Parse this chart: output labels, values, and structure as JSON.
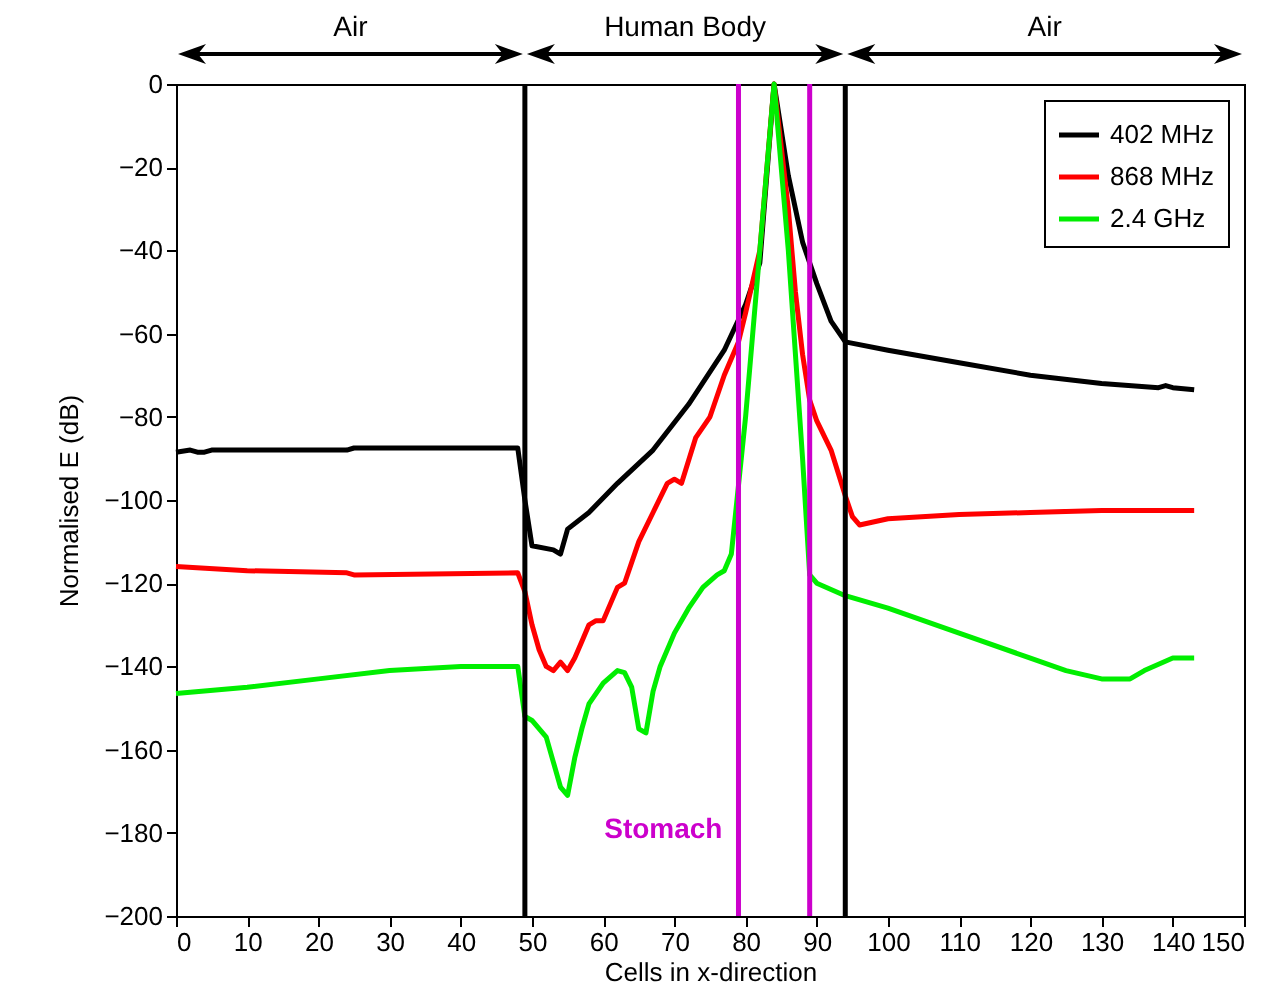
{
  "chart_data": {
    "type": "line",
    "xlabel": "Cells in x-direction",
    "ylabel": "Normalised E (dB)",
    "xlim": [
      0,
      150
    ],
    "xticks": [
      0,
      10,
      20,
      30,
      40,
      50,
      60,
      70,
      80,
      90,
      100,
      110,
      120,
      130,
      140,
      150
    ],
    "ylim": [
      -200,
      0
    ],
    "yticks": [
      -200,
      -180,
      -160,
      -140,
      -120,
      -100,
      -80,
      -60,
      -40,
      -20,
      0
    ],
    "grid": false,
    "legend": "top right",
    "marker": "none",
    "line_style": "solid",
    "annotations": [
      "Air",
      "Human Body",
      "Air",
      "Stomach"
    ],
    "ref_lines": [
      {
        "axis": "x",
        "value": 49,
        "color": "#000000"
      },
      {
        "axis": "x",
        "value": 94,
        "color": "#000000"
      },
      {
        "axis": "x",
        "value": 79,
        "color": "#cc00cc"
      },
      {
        "axis": "x",
        "value": 89,
        "color": "#cc00cc"
      }
    ],
    "series": [
      {
        "name": "402 MHz",
        "color": "#000000",
        "x": [
          0,
          2,
          3,
          4,
          5,
          24,
          25,
          40,
          48,
          49,
          50,
          53,
          54,
          55,
          58,
          62,
          67,
          72,
          77,
          80,
          82,
          84,
          86,
          88,
          90,
          92,
          94,
          100,
          110,
          120,
          130,
          138,
          139,
          140,
          143
        ],
        "values": [
          -88.5,
          -88,
          -88.5,
          -88.5,
          -88,
          -88,
          -87.5,
          -87.5,
          -87.5,
          -100,
          -111,
          -112,
          -113,
          -107,
          -103,
          -96,
          -88,
          -77,
          -64,
          -53,
          -43,
          0,
          -22,
          -38,
          -48,
          -57,
          -62,
          -64,
          -67,
          -70,
          -72,
          -73,
          -72.5,
          -73,
          -73.5
        ]
      },
      {
        "name": "868 MHz",
        "color": "#ff0000",
        "x": [
          0,
          10,
          24,
          25,
          48,
          49,
          50,
          51,
          52,
          53,
          54,
          55,
          56,
          57,
          58,
          59,
          60,
          62,
          63,
          65,
          67,
          69,
          70,
          71,
          73,
          75,
          77,
          79,
          80,
          82,
          84,
          86,
          87,
          88,
          89,
          90,
          92,
          94,
          95,
          96,
          100,
          110,
          120,
          130,
          140,
          143
        ],
        "values": [
          -116,
          -117,
          -117.5,
          -118,
          -117.5,
          -122,
          -130,
          -136,
          -140,
          -141,
          -139,
          -141,
          -138,
          -134,
          -130,
          -129,
          -129,
          -121,
          -120,
          -110,
          -103,
          -96,
          -95,
          -96,
          -85,
          -80,
          -70,
          -62,
          -55,
          -40,
          0,
          -30,
          -50,
          -65,
          -76,
          -81,
          -88,
          -99,
          -104,
          -106,
          -104.5,
          -103.5,
          -103,
          -102.5,
          -102.5,
          -102.5
        ]
      },
      {
        "name": "2.4 GHz",
        "color": "#00ee00",
        "x": [
          0,
          10,
          20,
          30,
          40,
          48,
          49,
          50,
          52,
          53,
          54,
          55,
          56,
          57,
          58,
          60,
          62,
          63,
          64,
          65,
          66,
          67,
          68,
          70,
          72,
          74,
          76,
          77,
          78,
          80,
          82,
          84,
          86,
          88,
          89,
          90,
          94,
          100,
          110,
          120,
          125,
          130,
          134,
          136,
          140,
          143
        ],
        "values": [
          -146.5,
          -145,
          -143,
          -141,
          -140,
          -140,
          -152,
          -153,
          -157,
          -163,
          -169,
          -171,
          -162,
          -155,
          -149,
          -144,
          -141,
          -141.5,
          -145,
          -155,
          -156,
          -146,
          -140,
          -132,
          -126,
          -121,
          -118,
          -117,
          -113,
          -80,
          -40,
          0,
          -40,
          -90,
          -118,
          -120,
          -123,
          -126,
          -132,
          -138,
          -141,
          -143,
          -143,
          -141,
          -138,
          -138
        ]
      }
    ]
  }
}
